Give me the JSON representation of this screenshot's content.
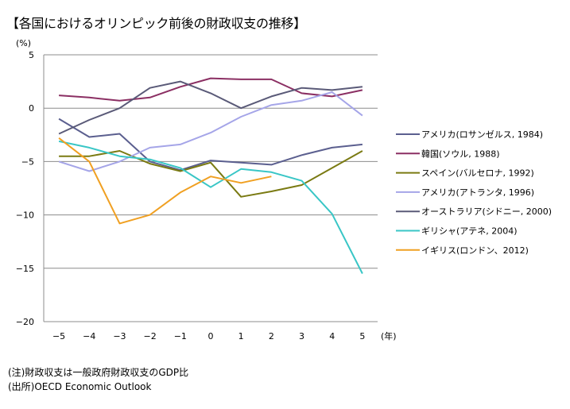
{
  "title": "【各国におけるオリンピック前後の財政収支の推移】",
  "notes": [
    "(注)財政収支は一般政府財政収支のGDP比",
    "(出所)OECD Economic Outlook"
  ],
  "chart_data": {
    "type": "line",
    "title": "【各国におけるオリンピック前後の財政収支の推移】",
    "ylabel": "(%)",
    "xlabel": "(年)",
    "x": [
      -5,
      -4,
      -3,
      -2,
      -1,
      0,
      1,
      2,
      3,
      4,
      5
    ],
    "x_tick_labels": [
      "−5",
      "−4",
      "−3",
      "−2",
      "−1",
      "0",
      "1",
      "2",
      "3",
      "4",
      "5"
    ],
    "ylim": [
      -20,
      5
    ],
    "y_ticks": [
      5,
      0,
      -5,
      -10,
      -15,
      -20
    ],
    "y_tick_labels": [
      "5",
      "0",
      "−5",
      "−10",
      "−15",
      "−20"
    ],
    "grid": "horizontal",
    "legend_position": "right",
    "series": [
      {
        "name": "アメリカ(ロサンゼルス, 1984)",
        "color": "#5b5f8f",
        "values": [
          -1.0,
          -2.7,
          -2.4,
          -5.0,
          -5.8,
          -4.9,
          -5.1,
          -5.3,
          -4.4,
          -3.7,
          -3.4
        ]
      },
      {
        "name": "韓国(ソウル, 1988)",
        "color": "#8b2f63",
        "values": [
          1.2,
          1.0,
          0.7,
          1.0,
          2.0,
          2.8,
          2.7,
          2.7,
          1.4,
          1.1,
          1.7
        ]
      },
      {
        "name": "スペイン(バルセロナ, 1992)",
        "color": "#7a7a12",
        "values": [
          -4.5,
          -4.5,
          -4.0,
          -5.2,
          -5.9,
          -5.1,
          -8.3,
          -7.8,
          -7.2,
          -5.6,
          -4.0
        ]
      },
      {
        "name": "アメリカ(アトランタ, 1996)",
        "color": "#a5a5e8",
        "values": [
          -5.0,
          -5.9,
          -5.0,
          -3.7,
          -3.4,
          -2.3,
          -0.8,
          0.3,
          0.7,
          1.5,
          -0.7
        ]
      },
      {
        "name": "オーストラリア(シドニー, 2000)",
        "color": "#5a5a78",
        "values": [
          -2.4,
          -1.1,
          0.0,
          1.9,
          2.5,
          1.4,
          0.0,
          1.1,
          1.9,
          1.7,
          2.0
        ]
      },
      {
        "name": "ギリシャ(アテネ, 2004)",
        "color": "#39c6c6",
        "values": [
          -3.1,
          -3.7,
          -4.5,
          -4.8,
          -5.6,
          -7.4,
          -5.7,
          -6.0,
          -6.8,
          -9.9,
          -15.5
        ]
      },
      {
        "name": "イギリス(ロンドン、2012)",
        "color": "#f0a022",
        "values": [
          -2.8,
          -5.0,
          -10.8,
          -10.0,
          -7.9,
          -6.4,
          -7.0,
          -6.4,
          null,
          null,
          null
        ]
      }
    ]
  }
}
